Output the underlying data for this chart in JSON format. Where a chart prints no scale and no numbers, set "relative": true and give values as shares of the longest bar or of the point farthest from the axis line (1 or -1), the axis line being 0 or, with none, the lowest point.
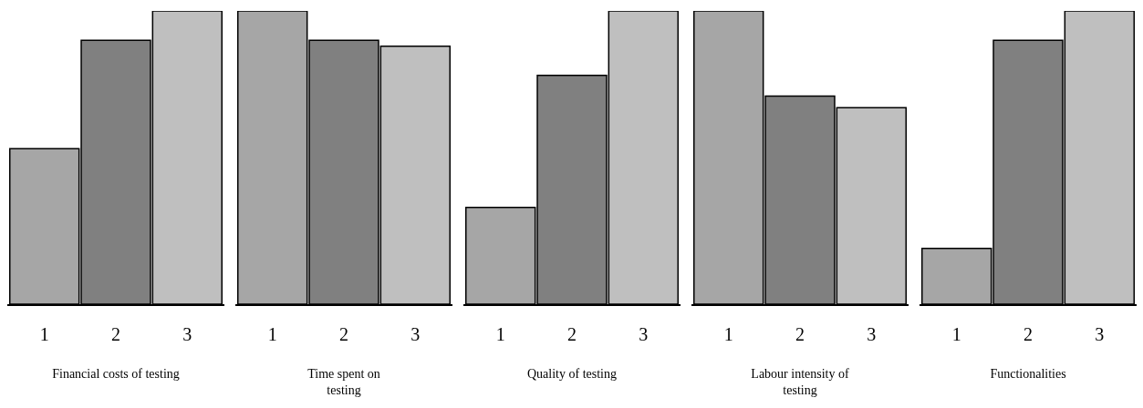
{
  "chart_data": [
    {
      "type": "bar",
      "relative": true,
      "tick_labels": "x",
      "xlabel": "Financial costs of testing",
      "categories": [
        "1",
        "2",
        "3"
      ],
      "values": [
        0.53,
        0.9,
        1
      ],
      "colors": [
        "#a6a6a6",
        "#808080",
        "#bfbfbf"
      ]
    },
    {
      "type": "bar",
      "relative": true,
      "tick_labels": "x",
      "xlabel": "Time spent on\ntesting",
      "categories": [
        "1",
        "2",
        "3"
      ],
      "values": [
        1,
        0.9,
        0.88
      ],
      "colors": [
        "#a6a6a6",
        "#808080",
        "#bfbfbf"
      ]
    },
    {
      "type": "bar",
      "relative": true,
      "tick_labels": "x",
      "xlabel": "Quality of testing",
      "categories": [
        "1",
        "2",
        "3"
      ],
      "values": [
        0.33,
        0.78,
        1
      ],
      "colors": [
        "#a6a6a6",
        "#808080",
        "#bfbfbf"
      ]
    },
    {
      "type": "bar",
      "relative": true,
      "tick_labels": "x",
      "xlabel": "Labour intensity of\ntesting",
      "categories": [
        "1",
        "2",
        "3"
      ],
      "values": [
        1,
        0.71,
        0.67
      ],
      "colors": [
        "#a6a6a6",
        "#808080",
        "#bfbfbf"
      ]
    },
    {
      "type": "bar",
      "relative": true,
      "tick_labels": "x",
      "xlabel": "Functionalities",
      "categories": [
        "1",
        "2",
        "3"
      ],
      "values": [
        0.19,
        0.9,
        1
      ],
      "colors": [
        "#a6a6a6",
        "#808080",
        "#bfbfbf"
      ]
    }
  ]
}
